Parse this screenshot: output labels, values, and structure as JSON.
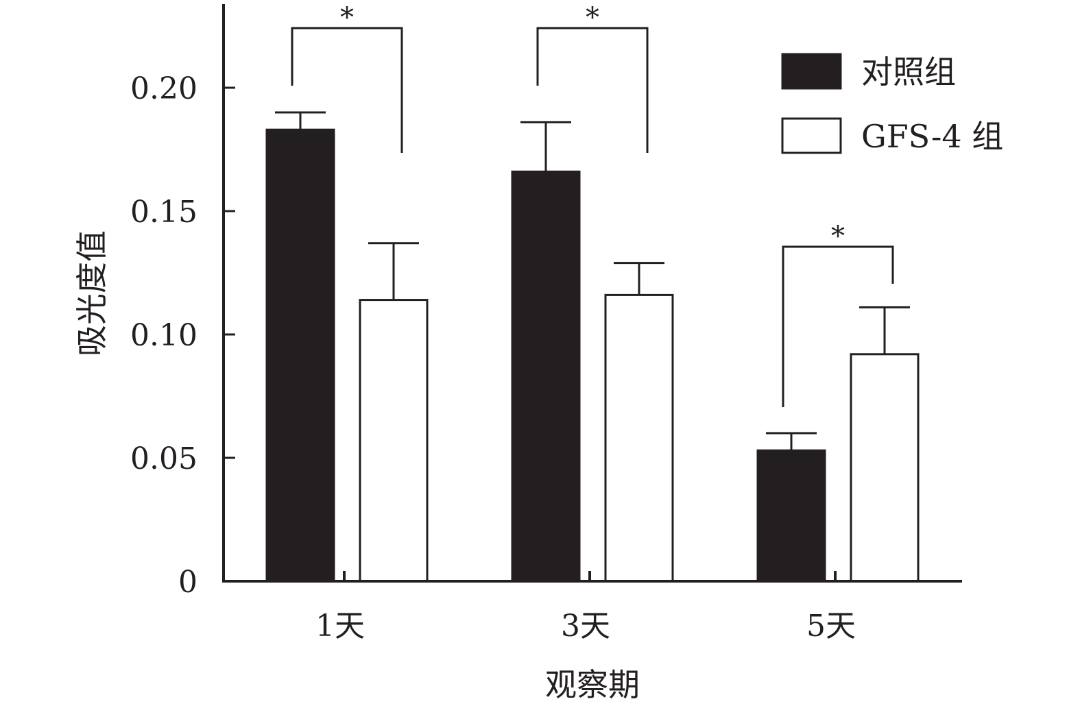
{
  "chart_data": {
    "type": "bar",
    "title": "",
    "xlabel": "观察期",
    "ylabel": "吸光度值",
    "ylim": [
      0,
      0.2
    ],
    "yticks": [
      {
        "value": 0,
        "label": "0"
      },
      {
        "value": 0.05,
        "label": "0.05"
      },
      {
        "value": 0.1,
        "label": "0.10"
      },
      {
        "value": 0.15,
        "label": "0.15"
      },
      {
        "value": 0.2,
        "label": "0.20"
      }
    ],
    "categories": [
      "1天",
      "3天",
      "5天"
    ],
    "series": [
      {
        "name": "对照组",
        "color": "#231f20",
        "values": [
          0.183,
          0.166,
          0.053
        ],
        "errors": [
          0.007,
          0.02,
          0.007
        ]
      },
      {
        "name": "GFS-4 组",
        "color": "#ffffff",
        "values": [
          0.114,
          0.116,
          0.092
        ],
        "errors": [
          0.023,
          0.013,
          0.019
        ]
      }
    ],
    "annotations": [
      {
        "category": "1天",
        "label": "*"
      },
      {
        "category": "3天",
        "label": "*"
      },
      {
        "category": "5天",
        "label": "*"
      }
    ],
    "legend_position": "top-right",
    "grid": false
  }
}
